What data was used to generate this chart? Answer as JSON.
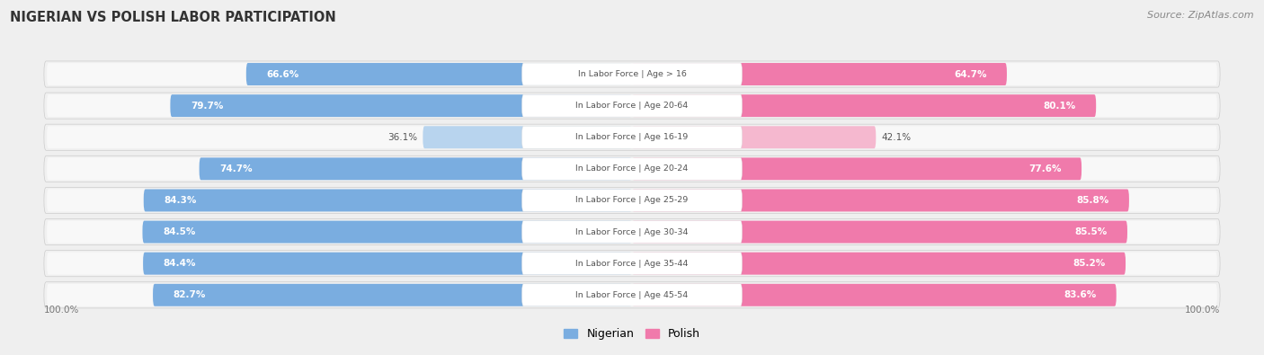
{
  "title": "NIGERIAN VS POLISH LABOR PARTICIPATION",
  "source": "Source: ZipAtlas.com",
  "categories": [
    "In Labor Force | Age > 16",
    "In Labor Force | Age 20-64",
    "In Labor Force | Age 16-19",
    "In Labor Force | Age 20-24",
    "In Labor Force | Age 25-29",
    "In Labor Force | Age 30-34",
    "In Labor Force | Age 35-44",
    "In Labor Force | Age 45-54"
  ],
  "nigerian_values": [
    66.6,
    79.7,
    36.1,
    74.7,
    84.3,
    84.5,
    84.4,
    82.7
  ],
  "polish_values": [
    64.7,
    80.1,
    42.1,
    77.6,
    85.8,
    85.5,
    85.2,
    83.6
  ],
  "nig_color": "#7aade0",
  "nig_light": "#b8d4ee",
  "pol_color": "#f07aab",
  "pol_light": "#f5b8cf",
  "bg_color": "#efefef",
  "row_bg_color": "#e0e0e0",
  "bar_bg_color": "#f8f8f8",
  "legend_nigerian": "Nigerian",
  "legend_polish": "Polish"
}
